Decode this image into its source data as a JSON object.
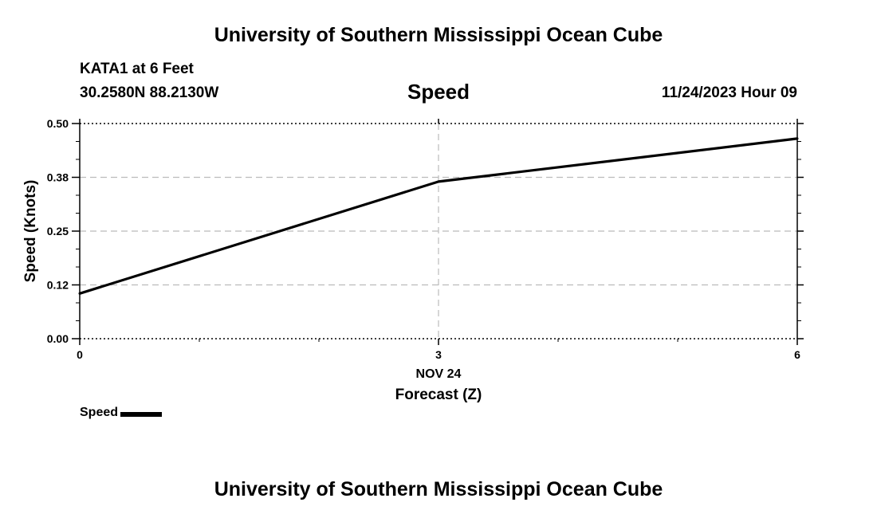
{
  "header": {
    "title": "University of Southern Mississippi Ocean Cube",
    "station": "KATA1 at 6 Feet",
    "coordinates": "30.2580N  88.2130W",
    "parameter": "Speed",
    "datetime": "11/24/2023 Hour 09"
  },
  "footer": {
    "title": "University of Southern Mississippi Ocean Cube"
  },
  "legend": {
    "label": "Speed",
    "color": "#000000"
  },
  "chart_data": {
    "type": "line",
    "title": "Speed",
    "xlabel": "Forecast (Z)",
    "ylabel": "Speed (Knots)",
    "x": [
      0,
      3,
      6
    ],
    "xlim": [
      0,
      6
    ],
    "ylim": [
      0.0,
      0.5
    ],
    "x_ticks": [
      0,
      3,
      6
    ],
    "x_tick_labels": [
      "0",
      "3",
      "6"
    ],
    "x_date_label": "NOV 24",
    "y_ticks": [
      0.0,
      0.125,
      0.25,
      0.375,
      0.5
    ],
    "y_tick_labels": [
      "0.00",
      "0.12",
      "0.25",
      "0.38",
      "0.50"
    ],
    "grid": true,
    "series": [
      {
        "name": "Speed",
        "color": "#000000",
        "values": [
          0.105,
          0.365,
          0.465
        ]
      }
    ]
  }
}
